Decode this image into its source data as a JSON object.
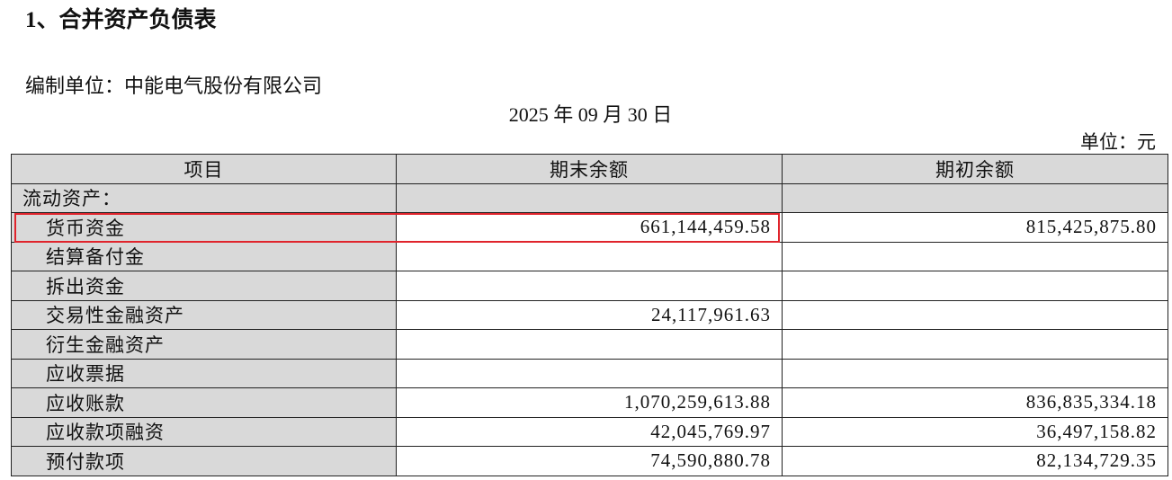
{
  "title": "1、合并资产负债表",
  "org": "编制单位：中能电气股份有限公司",
  "date": "2025 年 09 月 30 日",
  "unit": "单位：元",
  "highlight_color": "#e0242c",
  "table": {
    "headers": [
      "项目",
      "期末余额",
      "期初余额"
    ],
    "rows": [
      {
        "item": "流动资产：",
        "end": "",
        "begin": ""
      },
      {
        "item": "货币资金",
        "end": "661,144,459.58",
        "begin": "815,425,875.80"
      },
      {
        "item": "结算备付金",
        "end": "",
        "begin": ""
      },
      {
        "item": "拆出资金",
        "end": "",
        "begin": ""
      },
      {
        "item": "交易性金融资产",
        "end": "24,117,961.63",
        "begin": ""
      },
      {
        "item": "衍生金融资产",
        "end": "",
        "begin": ""
      },
      {
        "item": "应收票据",
        "end": "",
        "begin": ""
      },
      {
        "item": "应收账款",
        "end": "1,070,259,613.88",
        "begin": "836,835,334.18"
      },
      {
        "item": "应收款项融资",
        "end": "42,045,769.97",
        "begin": "36,497,158.82"
      },
      {
        "item": "预付款项",
        "end": "74,590,880.78",
        "begin": "82,134,729.35"
      }
    ]
  }
}
